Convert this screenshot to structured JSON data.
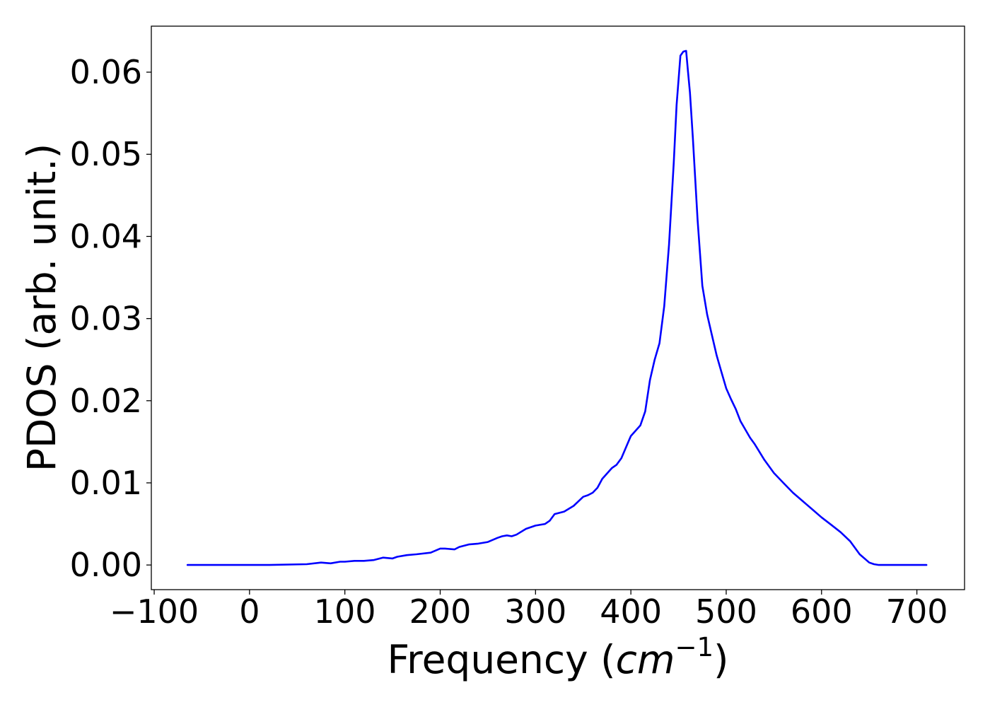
{
  "chart_data": {
    "type": "line",
    "title": "",
    "xlabel": "Frequency (",
    "xlabel_unit": "cm",
    "xlabel_unit_exp": "−1",
    "xlabel_close": ")",
    "ylabel": "PDOS (arb. unit.)",
    "xlim": [
      -103,
      750
    ],
    "ylim": [
      -0.003,
      0.0656
    ],
    "x_ticks": [
      -100,
      0,
      100,
      200,
      300,
      400,
      500,
      600,
      700
    ],
    "x_tick_labels": [
      "−100",
      "0",
      "100",
      "200",
      "300",
      "400",
      "500",
      "600",
      "700"
    ],
    "y_ticks": [
      0.0,
      0.01,
      0.02,
      0.03,
      0.04,
      0.05,
      0.06
    ],
    "y_tick_labels": [
      "0.00",
      "0.01",
      "0.02",
      "0.03",
      "0.04",
      "0.05",
      "0.06"
    ],
    "grid": false,
    "legend": "none",
    "series": [
      {
        "color": "#0000ff",
        "x": [
          -65,
          20,
          60,
          75,
          85,
          95,
          100,
          110,
          120,
          130,
          140,
          150,
          155,
          165,
          175,
          190,
          200,
          205,
          215,
          220,
          230,
          240,
          250,
          260,
          265,
          270,
          275,
          280,
          290,
          300,
          310,
          315,
          320,
          330,
          340,
          350,
          355,
          360,
          365,
          370,
          380,
          385,
          390,
          400,
          410,
          415,
          420,
          425,
          430,
          435,
          440,
          445,
          448,
          450,
          452,
          455,
          458,
          460,
          462,
          465,
          470,
          475,
          480,
          485,
          490,
          495,
          500,
          505,
          510,
          515,
          520,
          525,
          530,
          540,
          550,
          560,
          570,
          580,
          590,
          600,
          610,
          620,
          630,
          640,
          650,
          655,
          660,
          670,
          700,
          710
        ],
        "y": [
          0.0,
          0.0,
          0.0001,
          0.0003,
          0.0002,
          0.0004,
          0.0004,
          0.0005,
          0.0005,
          0.0006,
          0.0009,
          0.0008,
          0.001,
          0.0012,
          0.0013,
          0.0015,
          0.002,
          0.002,
          0.0019,
          0.0022,
          0.0025,
          0.0026,
          0.0028,
          0.0033,
          0.0035,
          0.0036,
          0.0035,
          0.0037,
          0.0044,
          0.0048,
          0.005,
          0.0054,
          0.0062,
          0.0065,
          0.0072,
          0.0083,
          0.0085,
          0.0088,
          0.0094,
          0.0105,
          0.0118,
          0.0122,
          0.013,
          0.0157,
          0.017,
          0.0187,
          0.0225,
          0.025,
          0.027,
          0.0315,
          0.039,
          0.049,
          0.056,
          0.059,
          0.062,
          0.0625,
          0.0626,
          0.06,
          0.0575,
          0.052,
          0.042,
          0.034,
          0.0305,
          0.028,
          0.0255,
          0.0235,
          0.0215,
          0.0202,
          0.019,
          0.0175,
          0.0165,
          0.0155,
          0.0147,
          0.0128,
          0.0112,
          0.01,
          0.0088,
          0.0078,
          0.0068,
          0.0058,
          0.0049,
          0.004,
          0.0029,
          0.0013,
          0.0003,
          0.0001,
          0.0,
          0.0,
          0.0,
          0.0
        ]
      }
    ]
  }
}
